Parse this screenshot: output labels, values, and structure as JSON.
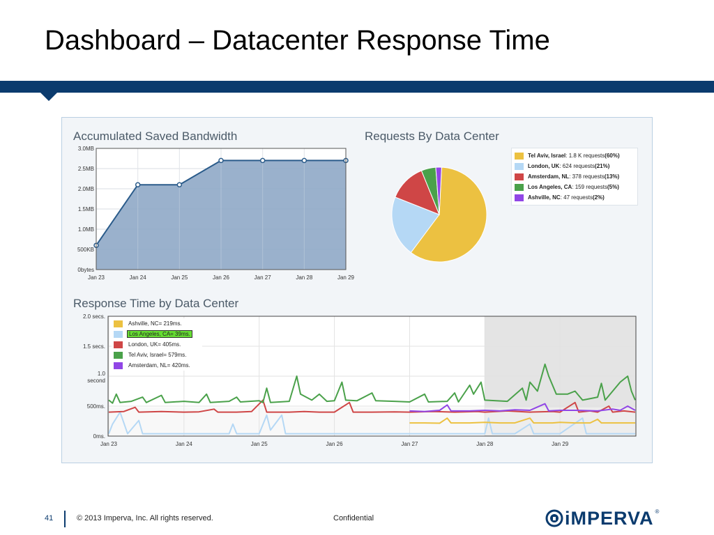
{
  "slide": {
    "title": "Dashboard – Datacenter Response Time",
    "page_number": "41",
    "copyright": "© 2013 Imperva, Inc. All rights reserved.",
    "confidential": "Confidential",
    "logo_text": "iMPERVA",
    "logo_mark": "®",
    "band_color": "#0b3b6e"
  },
  "chart_data": [
    {
      "type": "area",
      "title": "Accumulated Saved Bandwidth",
      "categories": [
        "Jan 23",
        "Jan 24",
        "Jan 25",
        "Jan 26",
        "Jan 27",
        "Jan 28",
        "Jan 29"
      ],
      "y_tick_labels": [
        "0bytes",
        "500KB",
        "1.0MB",
        "1.5MB",
        "2.0MB",
        "2.5MB",
        "3.0MB"
      ],
      "values_mb": [
        0.6,
        2.1,
        2.1,
        2.7,
        2.7,
        2.7,
        2.7
      ],
      "ylim": [
        0,
        3.0
      ],
      "grid": true,
      "fill_color": "#8fa9c6",
      "line_color": "#2a5b8a"
    },
    {
      "type": "pie",
      "title": "Requests By Data Center",
      "legend_position": "right",
      "slices": [
        {
          "name": "Tel Aviv, Israel",
          "detail": ": 1.8 K requests ",
          "pct_label": "(60%)",
          "value": 60,
          "color": "#ecc141"
        },
        {
          "name": "London, UK",
          "detail": ": 624 requests ",
          "pct_label": "(21%)",
          "value": 21,
          "color": "#b5d8f5"
        },
        {
          "name": "Amsterdam, NL",
          "detail": ": 378 requests ",
          "pct_label": "(13%)",
          "value": 13,
          "color": "#cf4646"
        },
        {
          "name": "Los Angeles, CA",
          "detail": ": 159 requests ",
          "pct_label": "(5%)",
          "value": 5,
          "color": "#4aa14a"
        },
        {
          "name": "Ashville, NC",
          "detail": ": 47 requests ",
          "pct_label": "(2%)",
          "value": 2,
          "color": "#9146e6"
        }
      ]
    },
    {
      "type": "line",
      "title": "Response Time by Data Center",
      "categories": [
        "Jan 23",
        "Jan 24",
        "Jan 25",
        "Jan 26",
        "Jan 27",
        "Jan 28",
        "Jan 29"
      ],
      "y_tick_labels": [
        "0ms.",
        "500ms.",
        "1.0\nsecond",
        "1.5 secs.",
        "2.0 secs."
      ],
      "ylim_ms": [
        0,
        2000
      ],
      "legend_position": "top-left",
      "highlighted_series": "Los Angeles, CA= 39ms.",
      "series": [
        {
          "name": "Ashville, NC= 219ms.",
          "color": "#ecc141",
          "points": [
            [
              4.0,
              220
            ],
            [
              4.2,
              220
            ],
            [
              4.4,
              215
            ],
            [
              4.5,
              300
            ],
            [
              4.55,
              220
            ],
            [
              4.8,
              220
            ],
            [
              5.0,
              230
            ],
            [
              5.2,
              220
            ],
            [
              5.4,
              220
            ],
            [
              5.6,
              300
            ],
            [
              5.65,
              220
            ],
            [
              5.9,
              220
            ],
            [
              6.0,
              230
            ],
            [
              6.2,
              220
            ],
            [
              6.4,
              220
            ],
            [
              6.5,
              280
            ],
            [
              6.55,
              220
            ],
            [
              6.8,
              220
            ],
            [
              7.0,
              220
            ]
          ]
        },
        {
          "name": "Los Angeles, CA= 39ms.",
          "color": "#b5d8f5",
          "points": [
            [
              0.0,
              40
            ],
            [
              0.05,
              200
            ],
            [
              0.15,
              400
            ],
            [
              0.25,
              40
            ],
            [
              0.4,
              260
            ],
            [
              0.45,
              40
            ],
            [
              1.0,
              40
            ],
            [
              1.4,
              40
            ],
            [
              1.6,
              40
            ],
            [
              1.65,
              200
            ],
            [
              1.7,
              40
            ],
            [
              2.0,
              40
            ],
            [
              2.1,
              350
            ],
            [
              2.15,
              100
            ],
            [
              2.3,
              350
            ],
            [
              2.35,
              40
            ],
            [
              2.6,
              40
            ],
            [
              3.0,
              40
            ],
            [
              3.4,
              40
            ],
            [
              3.8,
              40
            ],
            [
              4.0,
              40
            ],
            [
              4.2,
              40
            ],
            [
              4.6,
              40
            ],
            [
              4.9,
              40
            ],
            [
              5.0,
              40
            ],
            [
              5.05,
              300
            ],
            [
              5.1,
              40
            ],
            [
              5.4,
              40
            ],
            [
              5.6,
              200
            ],
            [
              5.65,
              40
            ],
            [
              6.0,
              40
            ],
            [
              6.3,
              300
            ],
            [
              6.35,
              40
            ],
            [
              6.6,
              40
            ],
            [
              6.8,
              40
            ],
            [
              7.0,
              40
            ]
          ]
        },
        {
          "name": "London, UK= 405ms.",
          "color": "#cf4646",
          "points": [
            [
              0.0,
              400
            ],
            [
              0.2,
              410
            ],
            [
              0.35,
              480
            ],
            [
              0.4,
              400
            ],
            [
              0.7,
              410
            ],
            [
              1.0,
              400
            ],
            [
              1.2,
              405
            ],
            [
              1.4,
              450
            ],
            [
              1.45,
              400
            ],
            [
              1.7,
              400
            ],
            [
              1.9,
              410
            ],
            [
              2.05,
              600
            ],
            [
              2.1,
              400
            ],
            [
              2.4,
              400
            ],
            [
              2.6,
              410
            ],
            [
              2.8,
              400
            ],
            [
              3.0,
              400
            ],
            [
              3.2,
              560
            ],
            [
              3.25,
              400
            ],
            [
              3.5,
              400
            ],
            [
              3.8,
              405
            ],
            [
              4.0,
              400
            ],
            [
              4.3,
              410
            ],
            [
              4.6,
              400
            ],
            [
              4.9,
              410
            ],
            [
              5.0,
              400
            ],
            [
              5.3,
              420
            ],
            [
              5.6,
              400
            ],
            [
              5.9,
              410
            ],
            [
              6.0,
              400
            ],
            [
              6.2,
              560
            ],
            [
              6.25,
              400
            ],
            [
              6.4,
              420
            ],
            [
              6.5,
              400
            ],
            [
              6.65,
              500
            ],
            [
              6.7,
              400
            ],
            [
              6.85,
              420
            ],
            [
              7.0,
              400
            ]
          ]
        },
        {
          "name": "Tel Aviv, Israel= 579ms.",
          "color": "#4aa14a",
          "points": [
            [
              0.0,
              600
            ],
            [
              0.05,
              550
            ],
            [
              0.1,
              700
            ],
            [
              0.15,
              560
            ],
            [
              0.3,
              580
            ],
            [
              0.45,
              650
            ],
            [
              0.5,
              560
            ],
            [
              0.7,
              680
            ],
            [
              0.75,
              560
            ],
            [
              1.0,
              580
            ],
            [
              1.2,
              560
            ],
            [
              1.3,
              700
            ],
            [
              1.35,
              560
            ],
            [
              1.6,
              580
            ],
            [
              1.7,
              650
            ],
            [
              1.75,
              570
            ],
            [
              2.0,
              590
            ],
            [
              2.05,
              560
            ],
            [
              2.1,
              800
            ],
            [
              2.15,
              560
            ],
            [
              2.4,
              580
            ],
            [
              2.5,
              1000
            ],
            [
              2.55,
              700
            ],
            [
              2.7,
              600
            ],
            [
              2.8,
              700
            ],
            [
              2.9,
              580
            ],
            [
              3.0,
              590
            ],
            [
              3.1,
              900
            ],
            [
              3.15,
              600
            ],
            [
              3.3,
              590
            ],
            [
              3.5,
              720
            ],
            [
              3.55,
              590
            ],
            [
              3.8,
              580
            ],
            [
              4.0,
              570
            ],
            [
              4.2,
              700
            ],
            [
              4.25,
              570
            ],
            [
              4.5,
              580
            ],
            [
              4.6,
              720
            ],
            [
              4.65,
              570
            ],
            [
              4.8,
              850
            ],
            [
              4.85,
              700
            ],
            [
              4.95,
              900
            ],
            [
              5.0,
              600
            ],
            [
              5.3,
              580
            ],
            [
              5.5,
              800
            ],
            [
              5.55,
              600
            ],
            [
              5.6,
              900
            ],
            [
              5.7,
              750
            ],
            [
              5.8,
              1200
            ],
            [
              5.85,
              1000
            ],
            [
              5.95,
              700
            ],
            [
              6.1,
              700
            ],
            [
              6.2,
              750
            ],
            [
              6.3,
              600
            ],
            [
              6.5,
              650
            ],
            [
              6.55,
              880
            ],
            [
              6.6,
              600
            ],
            [
              6.8,
              900
            ],
            [
              6.9,
              1000
            ],
            [
              6.95,
              750
            ],
            [
              7.0,
              600
            ]
          ]
        },
        {
          "name": "Amsterdam, NL= 420ms.",
          "color": "#9146e6",
          "points": [
            [
              4.0,
              420
            ],
            [
              4.2,
              410
            ],
            [
              4.4,
              430
            ],
            [
              4.5,
              520
            ],
            [
              4.55,
              420
            ],
            [
              4.8,
              420
            ],
            [
              5.0,
              430
            ],
            [
              5.2,
              420
            ],
            [
              5.4,
              440
            ],
            [
              5.6,
              430
            ],
            [
              5.8,
              540
            ],
            [
              5.85,
              420
            ],
            [
              6.0,
              430
            ],
            [
              6.2,
              430
            ],
            [
              6.5,
              420
            ],
            [
              6.7,
              450
            ],
            [
              6.8,
              430
            ],
            [
              6.9,
              500
            ],
            [
              7.0,
              430
            ]
          ]
        }
      ]
    }
  ]
}
